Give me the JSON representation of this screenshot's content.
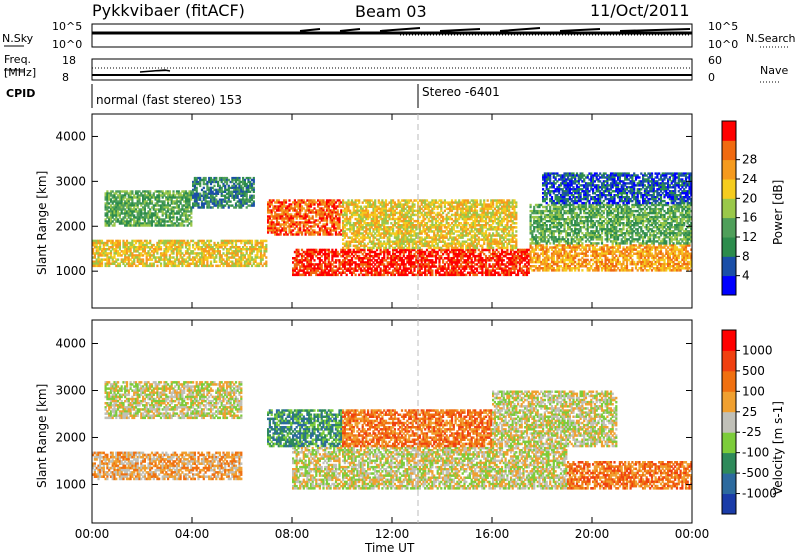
{
  "header": {
    "station": "Pykkvibaer (fitACF)",
    "beam": "Beam 03",
    "date": "11/Oct/2011"
  },
  "top_panels": {
    "nsky_label": "N.Sky",
    "nsky_ticks": [
      "10^5",
      "10^0"
    ],
    "nsearch_label": "N.Search",
    "nsearch_ticks": [
      "10^5",
      "10^0"
    ],
    "freq_label_1": "Freq.",
    "freq_label_2": "[MHz]",
    "freq_ticks": [
      "18",
      "8"
    ],
    "nave_label": "Nave",
    "nave_ticks": [
      "60",
      "0"
    ],
    "cpid_label": "CPID",
    "cpid_text_1": "normal (fast stereo) 153",
    "cpid_text_2": "Stereo -6401"
  },
  "chart_data": [
    {
      "type": "heatmap",
      "name": "power",
      "ylabel": "Slant Range [km]",
      "xlabel": "",
      "x_ticks": [
        "00:00",
        "04:00",
        "08:00",
        "12:00",
        "16:00",
        "20:00",
        "00:00"
      ],
      "y_ticks": [
        "1000",
        "2000",
        "3000",
        "4000"
      ],
      "xlim_hours": [
        0,
        24
      ],
      "ylim_km": [
        180,
        4500
      ],
      "marker_hour": 13,
      "colorbar": {
        "label": "Power [dB]",
        "ticks": [
          "4",
          "8",
          "12",
          "16",
          "20",
          "24",
          "28"
        ],
        "colors": [
          "#0000ff",
          "#1a4fa8",
          "#2c8c4c",
          "#4f9f5a",
          "#9ac84a",
          "#f5cc1e",
          "#f59a1e",
          "#f06a10",
          "#ff0000"
        ]
      },
      "bands": [
        {
          "t0": 0.0,
          "t1": 7.0,
          "r0": 1100,
          "r1": 1700,
          "level": 5
        },
        {
          "t0": 0.5,
          "t1": 4.0,
          "r0": 2000,
          "r1": 2800,
          "level": 3
        },
        {
          "t0": 4.0,
          "t1": 6.5,
          "r0": 2400,
          "r1": 3100,
          "level": 2
        },
        {
          "t0": 7.0,
          "t1": 10.0,
          "r0": 1800,
          "r1": 2600,
          "level": 7
        },
        {
          "t0": 8.0,
          "t1": 17.5,
          "r0": 900,
          "r1": 1500,
          "level": 8
        },
        {
          "t0": 10.0,
          "t1": 17.0,
          "r0": 1500,
          "r1": 2600,
          "level": 5
        },
        {
          "t0": 17.5,
          "t1": 24.0,
          "r0": 1000,
          "r1": 1600,
          "level": 6
        },
        {
          "t0": 17.5,
          "t1": 24.0,
          "r0": 1600,
          "r1": 2500,
          "level": 3
        },
        {
          "t0": 18.0,
          "t1": 24.0,
          "r0": 2500,
          "r1": 3200,
          "level": 1
        }
      ]
    },
    {
      "type": "heatmap",
      "name": "velocity",
      "ylabel": "Slant Range [km]",
      "xlabel": "Time UT",
      "x_ticks": [
        "00:00",
        "04:00",
        "08:00",
        "12:00",
        "16:00",
        "20:00",
        "00:00"
      ],
      "y_ticks": [
        "1000",
        "2000",
        "3000",
        "4000"
      ],
      "xlim_hours": [
        0,
        24
      ],
      "ylim_km": [
        180,
        4500
      ],
      "marker_hour": 13,
      "colorbar": {
        "label": "Velocity [m s-1]",
        "ticks": [
          "1000",
          "500",
          "100",
          "25",
          "-25",
          "-100",
          "-500",
          "-1000"
        ],
        "colors": [
          "#1a3ca8",
          "#2c6a9e",
          "#2e8a5a",
          "#7ccc3a",
          "#c0c0b8",
          "#f0a030",
          "#f07010",
          "#f04010",
          "#ff0000"
        ]
      },
      "bands": [
        {
          "t0": 0.0,
          "t1": 6.0,
          "r0": 1100,
          "r1": 1700,
          "level": 5
        },
        {
          "t0": 0.5,
          "t1": 6.0,
          "r0": 2400,
          "r1": 3200,
          "level": 4
        },
        {
          "t0": 7.0,
          "t1": 10.0,
          "r0": 1800,
          "r1": 2600,
          "level": 2
        },
        {
          "t0": 8.0,
          "t1": 19.0,
          "r0": 900,
          "r1": 1800,
          "level": 4
        },
        {
          "t0": 10.0,
          "t1": 16.0,
          "r0": 1800,
          "r1": 2600,
          "level": 6
        },
        {
          "t0": 16.0,
          "t1": 21.0,
          "r0": 1800,
          "r1": 3000,
          "level": 4
        },
        {
          "t0": 19.0,
          "t1": 24.0,
          "r0": 900,
          "r1": 1500,
          "level": 6
        }
      ]
    }
  ]
}
